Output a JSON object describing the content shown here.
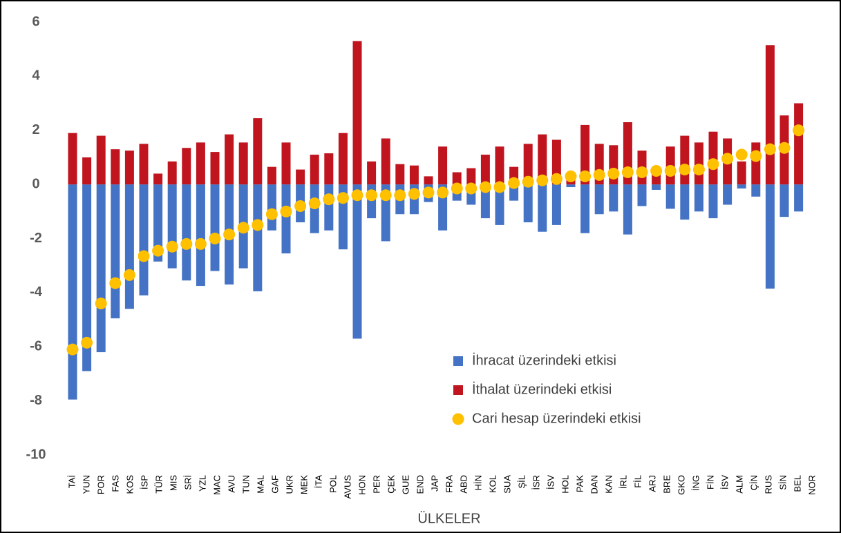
{
  "chart_data": {
    "type": "bar",
    "x_label": "ÜLKELER",
    "categories": [
      "TAİ",
      "YUN",
      "POR",
      "FAS",
      "KOS",
      "İSP",
      "TÜR",
      "MIS",
      "SRİ",
      "YZL",
      "MAC",
      "AVU",
      "TUN",
      "MAL",
      "GAF",
      "UKR",
      "MEK",
      "İTA",
      "POL",
      "AVUS",
      "HON",
      "PER",
      "ÇEK",
      "GUE",
      "END",
      "JAP",
      "FRA",
      "ABD",
      "HİN",
      "KOL",
      "SUA",
      "ŞİL",
      "İSR",
      "İSV",
      "HOL",
      "PAK",
      "DAN",
      "KAN",
      "İRL",
      "FİL",
      "ARJ",
      "BRE",
      "GKO",
      "İNG",
      "FİN",
      "İSV",
      "ALM",
      "ÇİN",
      "RUS",
      "SİN",
      "BEL",
      "NOR"
    ],
    "series": [
      {
        "name": "İhracat üzerindeki etkisi",
        "type": "bar",
        "color": "#4472c4",
        "values": [
          -7.95,
          -6.9,
          -6.2,
          -4.95,
          -4.6,
          -4.1,
          -2.85,
          -3.1,
          -3.55,
          -3.75,
          -3.2,
          -3.7,
          -3.1,
          -3.95,
          -1.7,
          -2.55,
          -1.4,
          -1.8,
          -1.7,
          -2.4,
          -5.7,
          -1.25,
          -2.1,
          -1.1,
          -1.1,
          -0.65,
          -1.7,
          -0.6,
          -0.75,
          -1.25,
          -1.5,
          -0.6,
          -1.4,
          -1.75,
          -1.5,
          -0.1,
          -1.8,
          -1.1,
          -1.0,
          -1.85,
          -0.8,
          -0.2,
          -0.9,
          -1.3,
          -1.0,
          -1.25,
          -0.75,
          -0.15,
          -0.45,
          -3.85,
          -1.2,
          -1.0
        ]
      },
      {
        "name": "İthalat üzerindeki etkisi",
        "type": "bar",
        "color": "#c0151f",
        "values": [
          1.9,
          1.0,
          1.8,
          1.3,
          1.25,
          1.5,
          0.4,
          0.85,
          1.35,
          1.55,
          1.2,
          1.85,
          1.55,
          2.45,
          0.65,
          1.55,
          0.55,
          1.1,
          1.15,
          1.9,
          5.3,
          0.85,
          1.7,
          0.75,
          0.7,
          0.3,
          1.4,
          0.45,
          0.6,
          1.1,
          1.4,
          0.65,
          1.5,
          1.85,
          1.65,
          0.4,
          2.2,
          1.5,
          1.45,
          2.3,
          1.25,
          0.45,
          1.4,
          1.8,
          1.55,
          1.95,
          1.7,
          0.85,
          1.55,
          5.15,
          2.55,
          3.0
        ]
      },
      {
        "name": "Cari hesap üzerindeki etkisi",
        "type": "dot",
        "color": "#ffc000",
        "values": [
          -6.1,
          -5.85,
          -4.4,
          -3.65,
          -3.35,
          -2.65,
          -2.45,
          -2.3,
          -2.2,
          -2.2,
          -2.0,
          -1.85,
          -1.6,
          -1.5,
          -1.1,
          -1.0,
          -0.8,
          -0.7,
          -0.55,
          -0.5,
          -0.4,
          -0.4,
          -0.4,
          -0.4,
          -0.35,
          -0.3,
          -0.3,
          -0.15,
          -0.15,
          -0.1,
          -0.1,
          0.05,
          0.1,
          0.15,
          0.2,
          0.3,
          0.3,
          0.35,
          0.4,
          0.45,
          0.45,
          0.5,
          0.5,
          0.55,
          0.55,
          0.75,
          0.95,
          1.1,
          1.05,
          1.3,
          1.35,
          2.0
        ]
      }
    ],
    "ylim": [
      -10,
      6
    ],
    "yticks": [
      -10,
      -8,
      -6,
      -4,
      -2,
      0,
      2,
      4,
      6
    ],
    "grid": false
  }
}
